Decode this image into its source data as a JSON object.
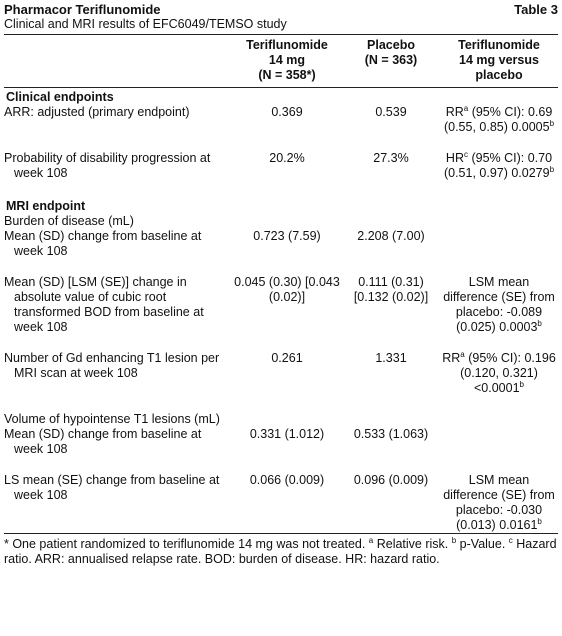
{
  "header": {
    "title": "Pharmacor Teriflunomide",
    "table_label": "Table 3",
    "subtitle": "Clinical and MRI results of EFC6049/TEMSO study"
  },
  "columns": [
    [
      "Teriflunomide",
      "14 mg",
      "(N = 358*)"
    ],
    [
      "Placebo",
      "(N = 363)"
    ],
    [
      "Teriflunomide",
      "14 mg versus",
      "placebo"
    ]
  ],
  "rows": [
    {
      "section": "Clinical endpoints"
    },
    {
      "cells": [
        [
          "ARR: adjusted (primary endpoint)"
        ],
        [
          "0.369"
        ],
        [
          "0.539"
        ],
        [
          "RR",
          {
            "sup": "a"
          },
          " (95% CI): 0.69 (0.55, 0.85) 0.0005",
          {
            "sup": "b"
          }
        ]
      ]
    },
    {
      "cells": [
        [
          "Probability of disability progression at week 108"
        ],
        [
          "20.2%"
        ],
        [
          "27.3%"
        ],
        [
          "HR",
          {
            "sup": "c"
          },
          " (95% CI): 0.70 (0.51, 0.97) 0.0279",
          {
            "sup": "b"
          }
        ]
      ]
    },
    {
      "section": "MRI endpoint"
    },
    {
      "cells": [
        [
          "Burden of disease (mL)"
        ]
      ]
    },
    {
      "cells": [
        [
          "Mean (SD) change from baseline at week 108"
        ],
        [
          "0.723 (7.59)"
        ],
        [
          "2.208 (7.00)"
        ]
      ]
    },
    {
      "cells": [
        [
          "Mean (SD) [LSM (SE)] change in absolute value of cubic root transformed BOD from baseline at week 108"
        ],
        [
          "0.045 (0.30) [0.043 (0.02)]"
        ],
        [
          "0.111 (0.31) [0.132 (0.02)]"
        ],
        [
          "LSM mean difference (SE) from placebo: -0.089 (0.025) 0.0003",
          {
            "sup": "b"
          }
        ]
      ]
    },
    {
      "cells": [
        [
          "Number of Gd enhancing T1 lesion per MRI scan at week 108"
        ],
        [
          "0.261"
        ],
        [
          "1.331"
        ],
        [
          "RR",
          {
            "sup": "a"
          },
          " (95% CI): 0.196 (0.120, 0.321) <0.0001",
          {
            "sup": "b"
          }
        ]
      ]
    },
    {
      "cells": [
        [
          "Volume of hypointense T1 lesions (mL)"
        ]
      ]
    },
    {
      "cells": [
        [
          "Mean (SD) change from baseline at week 108"
        ],
        [
          "0.331 (1.012)"
        ],
        [
          "0.533 (1.063)"
        ]
      ]
    },
    {
      "cells": [
        [
          "LS mean (SE) change from baseline at week 108"
        ],
        [
          "0.066 (0.009)"
        ],
        [
          "0.096 (0.009)"
        ],
        [
          "LSM mean difference (SE) from placebo: -0.030 (0.013) 0.0161",
          {
            "sup": "b"
          }
        ]
      ]
    }
  ],
  "footnote": [
    "* One patient randomized to teriflunomide 14 mg was not treated. ",
    {
      "sup": "a"
    },
    " Relative risk. ",
    {
      "sup": "b"
    },
    " p-Value. ",
    {
      "sup": "c"
    },
    " Hazard ratio. ARR: annualised relapse rate. BOD: burden of disease. HR: hazard ratio."
  ]
}
